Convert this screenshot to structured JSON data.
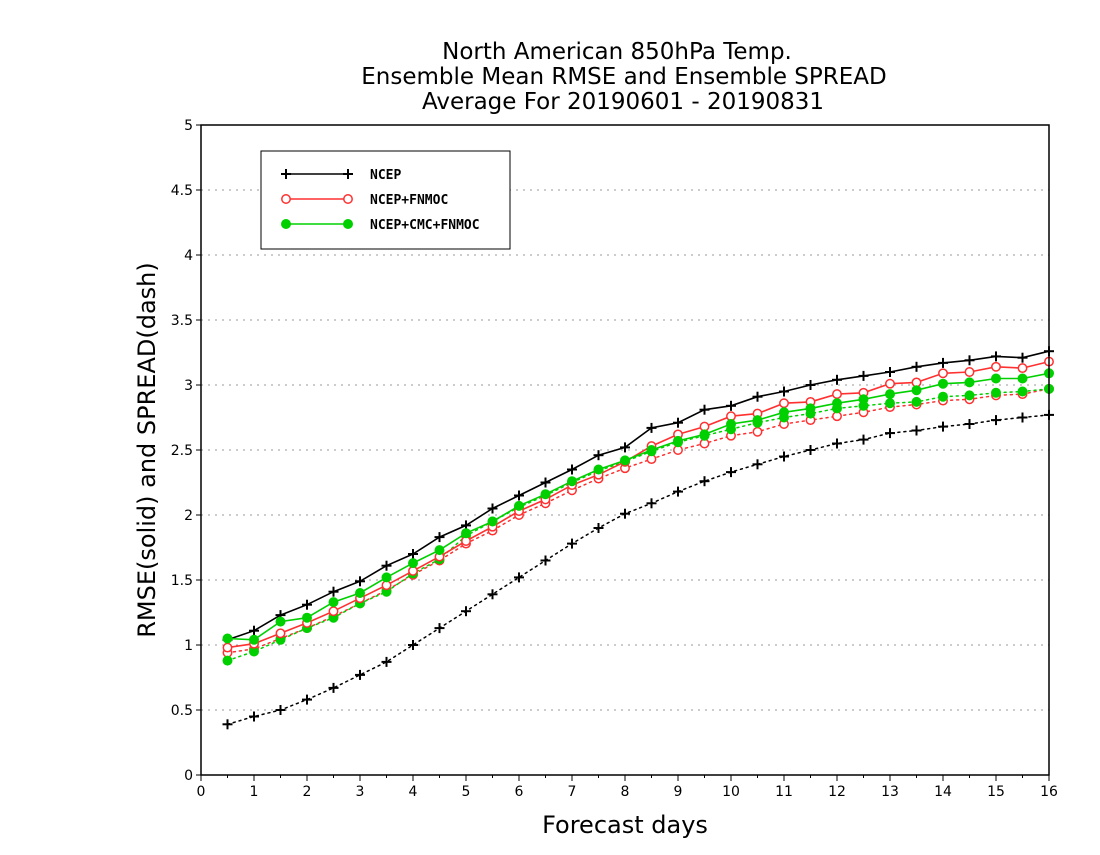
{
  "chart_data": {
    "type": "line",
    "title": [
      "North American 850hPa Temp.",
      "Ensemble Mean RMSE and Ensemble SPREAD",
      "Average For 20190601 - 20190831"
    ],
    "xlabel": "Forecast days",
    "ylabel": "RMSE(solid) and SPREAD(dash)",
    "xlim": [
      0,
      16
    ],
    "ylim": [
      0,
      5
    ],
    "xticks": [
      "0",
      "1",
      "2",
      "3",
      "4",
      "5",
      "6",
      "7",
      "8",
      "9",
      "10",
      "11",
      "12",
      "13",
      "14",
      "15",
      "16"
    ],
    "yticks": [
      "0",
      "0.5",
      "1",
      "1.5",
      "2",
      "2.5",
      "3",
      "3.5",
      "4",
      "4.5",
      "5"
    ],
    "grid": "horizontal dotted",
    "legend_position": "top-left",
    "x": [
      0.5,
      1,
      1.5,
      2,
      2.5,
      3,
      3.5,
      4,
      4.5,
      5,
      5.5,
      6,
      6.5,
      7,
      7.5,
      8,
      8.5,
      9,
      9.5,
      10,
      10.5,
      11,
      11.5,
      12,
      12.5,
      13,
      13.5,
      14,
      14.5,
      15,
      15.5,
      16
    ],
    "series": [
      {
        "name": "NCEP",
        "color": "#000000",
        "marker": "plus",
        "rmse": [
          1.04,
          1.11,
          1.23,
          1.31,
          1.41,
          1.49,
          1.61,
          1.7,
          1.83,
          1.92,
          2.05,
          2.15,
          2.25,
          2.35,
          2.46,
          2.52,
          2.67,
          2.71,
          2.81,
          2.84,
          2.91,
          2.95,
          3.0,
          3.04,
          3.07,
          3.1,
          3.14,
          3.17,
          3.19,
          3.22,
          3.21,
          3.26
        ],
        "spread": [
          0.39,
          0.45,
          0.5,
          0.58,
          0.67,
          0.77,
          0.87,
          1.0,
          1.13,
          1.26,
          1.39,
          1.52,
          1.65,
          1.78,
          1.9,
          2.01,
          2.09,
          2.18,
          2.26,
          2.33,
          2.39,
          2.45,
          2.5,
          2.55,
          2.58,
          2.63,
          2.65,
          2.68,
          2.7,
          2.73,
          2.75,
          2.77
        ]
      },
      {
        "name": "NCEP+FNMOC",
        "color": "#ff3030",
        "marker": "open-circle",
        "rmse": [
          0.98,
          1.01,
          1.09,
          1.17,
          1.26,
          1.36,
          1.46,
          1.57,
          1.68,
          1.8,
          1.91,
          2.03,
          2.12,
          2.23,
          2.31,
          2.41,
          2.53,
          2.62,
          2.68,
          2.76,
          2.78,
          2.86,
          2.87,
          2.93,
          2.94,
          3.01,
          3.02,
          3.09,
          3.1,
          3.14,
          3.13,
          3.18
        ],
        "spread": [
          0.94,
          0.97,
          1.05,
          1.13,
          1.22,
          1.32,
          1.42,
          1.54,
          1.65,
          1.78,
          1.88,
          2.0,
          2.09,
          2.19,
          2.28,
          2.36,
          2.43,
          2.5,
          2.55,
          2.61,
          2.64,
          2.7,
          2.73,
          2.76,
          2.79,
          2.83,
          2.85,
          2.88,
          2.89,
          2.92,
          2.93,
          2.97
        ]
      },
      {
        "name": "NCEP+CMC+FNMOC",
        "color": "#00d000",
        "marker": "filled-circle",
        "rmse": [
          1.05,
          1.04,
          1.18,
          1.21,
          1.33,
          1.4,
          1.52,
          1.63,
          1.73,
          1.86,
          1.95,
          2.07,
          2.16,
          2.26,
          2.35,
          2.42,
          2.5,
          2.57,
          2.62,
          2.7,
          2.73,
          2.79,
          2.82,
          2.86,
          2.89,
          2.93,
          2.96,
          3.01,
          3.02,
          3.05,
          3.05,
          3.09
        ],
        "spread": [
          0.88,
          0.95,
          1.04,
          1.13,
          1.21,
          1.32,
          1.41,
          1.55,
          1.66,
          1.84,
          1.95,
          2.06,
          2.15,
          2.25,
          2.34,
          2.41,
          2.49,
          2.56,
          2.61,
          2.66,
          2.71,
          2.75,
          2.78,
          2.82,
          2.84,
          2.86,
          2.87,
          2.91,
          2.92,
          2.94,
          2.95,
          2.97
        ]
      }
    ]
  }
}
